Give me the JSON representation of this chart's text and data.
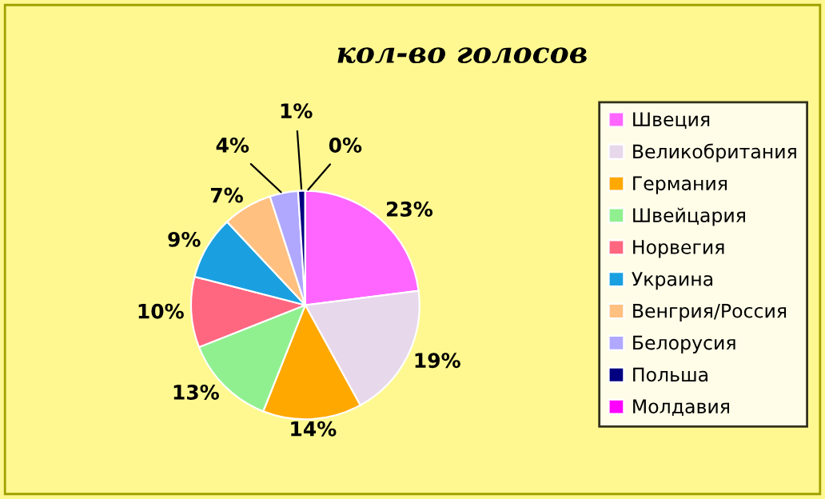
{
  "chart_data": {
    "type": "pie",
    "title": "кол-во голосов",
    "categories": [
      "Швеция",
      "Великобритания",
      "Германия",
      "Швейцария",
      "Норвегия",
      "Украина",
      "Венгрия/Россия",
      "Белорусия",
      "Польша",
      "Молдавия"
    ],
    "values": [
      23,
      19,
      14,
      13,
      10,
      9,
      7,
      4,
      1,
      0
    ],
    "value_labels": [
      "23%",
      "19%",
      "14%",
      "13%",
      "10%",
      "9%",
      "7%",
      "4%",
      "1%",
      "0%"
    ],
    "colors": [
      "#ff66ff",
      "#e8d8ec",
      "#ffa800",
      "#90f090",
      "#ff6680",
      "#1aa0e0",
      "#ffc080",
      "#b0a8ff",
      "#000080",
      "#ff00ff"
    ],
    "legend": "right"
  }
}
